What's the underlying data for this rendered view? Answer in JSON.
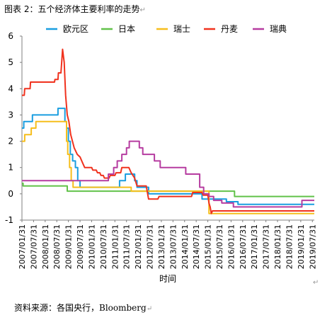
{
  "figure": {
    "title": "图表 2：五个经济体主要利率的走势",
    "para_mark": "↵",
    "source": "资料来源：各国央行，Bloomberg"
  },
  "chart_data": {
    "type": "line",
    "title": "",
    "xlabel": "时间",
    "ylabel": "",
    "ylim": [
      -1,
      6
    ],
    "yticks": [
      -1,
      0,
      1,
      2,
      3,
      4,
      5,
      6
    ],
    "xlim": [
      2007.0,
      2019.583
    ],
    "grid": false,
    "legend_position": "top",
    "x_tick_labels": [
      "2007/01/31",
      "2007/07/31",
      "2008/01/31",
      "2008/07/31",
      "2009/01/31",
      "2009/07/31",
      "2010/01/31",
      "2010/07/31",
      "2011/01/31",
      "2011/07/31",
      "2012/01/31",
      "2012/07/31",
      "2013/01/31",
      "2013/07/31",
      "2014/01/31",
      "2014/07/31",
      "2015/01/31",
      "2015/07/31",
      "2016/01/31",
      "2016/07/31",
      "2017/01/31",
      "2017/07/31",
      "2018/01/31",
      "2018/07/31",
      "2019/01/31",
      "2019/07/31"
    ],
    "series": [
      {
        "name": "欧元区",
        "color": "#1a9ee0",
        "step": true,
        "points": [
          [
            2007.0,
            2.5
          ],
          [
            2007.08,
            2.75
          ],
          [
            2007.45,
            3.0
          ],
          [
            2008.55,
            3.25
          ],
          [
            2008.78,
            3.25
          ],
          [
            2008.85,
            2.75
          ],
          [
            2008.92,
            2.5
          ],
          [
            2009.0,
            2.0
          ],
          [
            2009.08,
            1.5
          ],
          [
            2009.18,
            1.25
          ],
          [
            2009.3,
            1.0
          ],
          [
            2009.4,
            0.5
          ],
          [
            2009.5,
            0.25
          ],
          [
            2011.0,
            0.25
          ],
          [
            2011.2,
            0.5
          ],
          [
            2011.45,
            0.75
          ],
          [
            2011.7,
            0.75
          ],
          [
            2011.85,
            0.5
          ],
          [
            2011.95,
            0.25
          ],
          [
            2012.45,
            0.0
          ],
          [
            2014.4,
            0.0
          ],
          [
            2014.75,
            -0.2
          ],
          [
            2015.0,
            -0.2
          ],
          [
            2015.8,
            -0.3
          ],
          [
            2016.15,
            -0.3
          ],
          [
            2016.3,
            -0.4
          ],
          [
            2019.583,
            -0.4
          ]
        ]
      },
      {
        "name": "日本",
        "color": "#62c24a",
        "step": true,
        "points": [
          [
            2007.0,
            0.4
          ],
          [
            2007.05,
            0.3
          ],
          [
            2008.85,
            0.3
          ],
          [
            2008.95,
            0.1
          ],
          [
            2016.05,
            0.1
          ],
          [
            2016.15,
            -0.1
          ],
          [
            2019.583,
            -0.1
          ]
        ]
      },
      {
        "name": "瑞士",
        "color": "#f6be1c",
        "step": true,
        "points": [
          [
            2007.0,
            2.0
          ],
          [
            2007.12,
            2.25
          ],
          [
            2007.4,
            2.5
          ],
          [
            2007.6,
            2.75
          ],
          [
            2008.85,
            2.75
          ],
          [
            2008.92,
            2.0
          ],
          [
            2008.97,
            1.5
          ],
          [
            2009.05,
            1.0
          ],
          [
            2009.12,
            0.5
          ],
          [
            2009.2,
            0.25
          ],
          [
            2011.6,
            0.25
          ],
          [
            2011.7,
            0.1
          ],
          [
            2011.9,
            0.1
          ],
          [
            2015.0,
            0.1
          ],
          [
            2015.05,
            -0.75
          ],
          [
            2019.583,
            -0.75
          ]
        ]
      },
      {
        "name": "丹麦",
        "color": "#f0321e",
        "step": false,
        "points": [
          [
            2007.0,
            3.75
          ],
          [
            2007.1,
            3.75
          ],
          [
            2007.12,
            4.0
          ],
          [
            2007.35,
            4.0
          ],
          [
            2007.37,
            4.25
          ],
          [
            2008.4,
            4.25
          ],
          [
            2008.42,
            4.35
          ],
          [
            2008.55,
            4.35
          ],
          [
            2008.57,
            4.6
          ],
          [
            2008.68,
            4.6
          ],
          [
            2008.75,
            5.5
          ],
          [
            2008.82,
            5.0
          ],
          [
            2008.88,
            3.75
          ],
          [
            2008.95,
            3.0
          ],
          [
            2009.02,
            2.75
          ],
          [
            2009.1,
            2.25
          ],
          [
            2009.25,
            1.75
          ],
          [
            2009.38,
            1.5
          ],
          [
            2009.5,
            1.4
          ],
          [
            2009.6,
            1.2
          ],
          [
            2009.7,
            1.0
          ],
          [
            2010.0,
            1.0
          ],
          [
            2010.05,
            0.9
          ],
          [
            2010.2,
            0.9
          ],
          [
            2010.25,
            0.8
          ],
          [
            2010.35,
            0.8
          ],
          [
            2010.4,
            0.7
          ],
          [
            2010.5,
            0.7
          ],
          [
            2010.55,
            0.6
          ],
          [
            2010.75,
            0.6
          ],
          [
            2010.8,
            0.7
          ],
          [
            2011.0,
            0.7
          ],
          [
            2011.05,
            0.8
          ],
          [
            2011.25,
            0.8
          ],
          [
            2011.3,
            1.0
          ],
          [
            2011.6,
            1.0
          ],
          [
            2011.7,
            0.8
          ],
          [
            2011.85,
            0.6
          ],
          [
            2011.95,
            0.3
          ],
          [
            2012.35,
            0.3
          ],
          [
            2012.45,
            -0.2
          ],
          [
            2012.85,
            -0.2
          ],
          [
            2012.9,
            -0.1
          ],
          [
            2014.3,
            -0.1
          ],
          [
            2014.35,
            0.05
          ],
          [
            2014.75,
            0.05
          ],
          [
            2014.8,
            -0.05
          ],
          [
            2015.0,
            -0.05
          ],
          [
            2015.05,
            -0.35
          ],
          [
            2015.1,
            -0.5
          ],
          [
            2015.15,
            -0.75
          ],
          [
            2015.2,
            -0.65
          ],
          [
            2019.583,
            -0.65
          ]
        ]
      },
      {
        "name": "瑞典",
        "color": "#b63ca0",
        "step": true,
        "points": [
          [
            2007.0,
            0.5
          ],
          [
            2010.6,
            0.5
          ],
          [
            2010.72,
            0.75
          ],
          [
            2010.95,
            1.0
          ],
          [
            2011.1,
            1.25
          ],
          [
            2011.3,
            1.5
          ],
          [
            2011.5,
            1.75
          ],
          [
            2011.62,
            2.0
          ],
          [
            2011.95,
            2.0
          ],
          [
            2012.05,
            1.75
          ],
          [
            2012.2,
            1.5
          ],
          [
            2012.7,
            1.25
          ],
          [
            2012.95,
            1.0
          ],
          [
            2013.9,
            1.0
          ],
          [
            2014.05,
            0.75
          ],
          [
            2014.55,
            0.75
          ],
          [
            2014.65,
            0.25
          ],
          [
            2014.82,
            0.0
          ],
          [
            2015.05,
            -0.1
          ],
          [
            2015.25,
            -0.25
          ],
          [
            2015.6,
            -0.35
          ],
          [
            2016.1,
            -0.5
          ],
          [
            2018.95,
            -0.5
          ],
          [
            2019.05,
            -0.25
          ],
          [
            2019.583,
            -0.25
          ]
        ]
      }
    ]
  }
}
